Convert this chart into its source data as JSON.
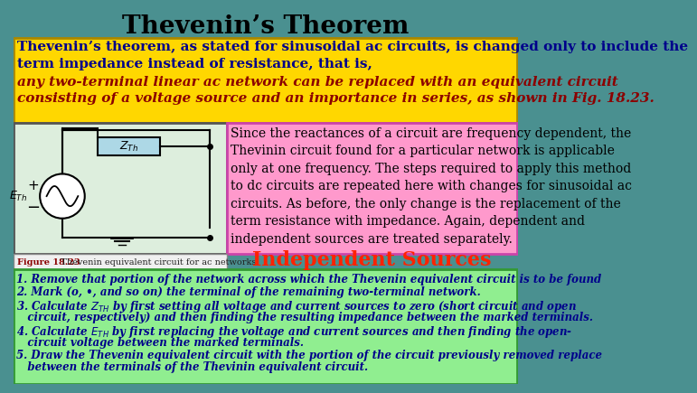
{
  "title": "Thevenin’s Theorem",
  "title_bg_top": "#4a9090",
  "title_bg_bottom": "#3a7a7a",
  "title_color": "#000000",
  "title_fontsize": 20,
  "yellow_box_bg": "#FFD700",
  "yellow_text1": "Thevenin’s theorem, as stated for sinusoidal ac circuits, is changed only to include the\nterm impedance instead of resistance, that is,",
  "yellow_text1_color": "#00008B",
  "yellow_text1_fontsize": 11,
  "yellow_text2": "any two-terminal linear ac network can be replaced with an equivalent circuit\nconsisting of a voltage source and an importance in series, as shown in Fig. 18.23.",
  "yellow_text2_color": "#8B0000",
  "yellow_text2_fontsize": 11,
  "circuit_bg": "#DDEEDD",
  "circuit_border": "#555555",
  "zth_box_bg": "#ADD8E6",
  "pink_box_bg": "#FF99CC",
  "pink_border": "#CC44AA",
  "pink_text": "Since the reactances of a circuit are frequency dependent, the\nThevinin circuit found for a particular network is applicable\nonly at one frequency. The steps required to apply this method\nto dc circuits are repeated here with changes for sinusoidal ac\ncircuits. As before, the only change is the replacement of the\nterm resistance with impedance. Again, dependent and\nindependent sources are treated separately.",
  "pink_text_color": "#000000",
  "pink_text_fontsize": 10,
  "fig_caption_bold": "Figure 18.23",
  "fig_caption_rest": "  Thevenin equivalent circuit for ac networks.",
  "fig_caption_color": "#8B0000",
  "fig_caption_fontsize": 7,
  "caption_bg": "#f0f0f0",
  "indep_text": "Independent Sources",
  "indep_color": "#FF2200",
  "indep_fontsize": 16,
  "green_bg": "#90EE90",
  "green_border": "#339933",
  "green_text_color": "#00008B",
  "green_fontsize": 8.5,
  "step1": "1. Remove that portion of the network across which the Thevenin equivalent circuit is to be found",
  "step2": "2. Mark (o, •, and so on) the terminal of the remaining two-terminal network.",
  "step3a": "3. Calculate Z",
  "step3b": "TH",
  "step3c": " by first setting all voltage and current sources to zero (short circuit and open",
  "step3d": "   circuit, respectively) and then finding the resulting impedance between the marked terminals.",
  "step4a": "4. Calculate E",
  "step4b": "TH",
  "step4c": " by first replacing the voltage and current sources and then finding the open-",
  "step4d": "   circuit voltage between the marked terminals.",
  "step5a": "5. Draw the Thevenin equivalent circuit with the portion of the circuit previously removed replace",
  "step5b": "   between the terminals of the Thevinin equivalent circuit."
}
